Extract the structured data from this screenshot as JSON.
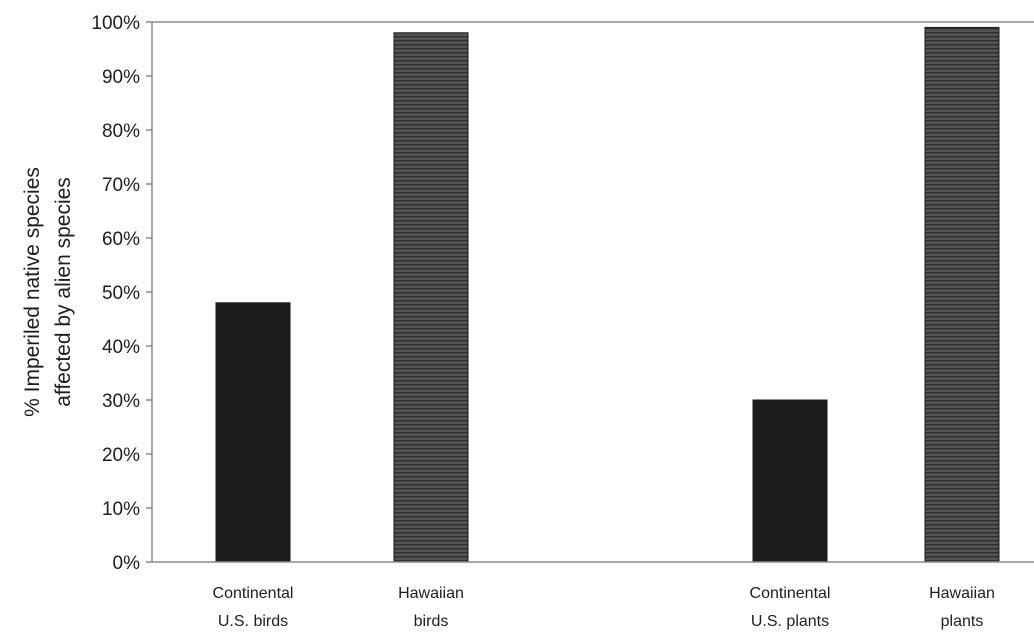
{
  "chart_data": {
    "type": "bar",
    "title": "",
    "xlabel": "",
    "ylabel": [
      "% Imperiled native species",
      "affected by alien species"
    ],
    "ylim": [
      0,
      100
    ],
    "yticks": [
      0,
      10,
      20,
      30,
      40,
      50,
      60,
      70,
      80,
      90,
      100
    ],
    "ytick_labels": [
      "0%",
      "10%",
      "20%",
      "30%",
      "40%",
      "50%",
      "60%",
      "70%",
      "80%",
      "90%",
      "100%"
    ],
    "grid": false,
    "legend": "none",
    "categories": [
      [
        "Continental",
        "U.S. birds"
      ],
      [
        "Hawaiian",
        "birds"
      ],
      [
        "Continental",
        "U.S. plants"
      ],
      [
        "Hawaiian",
        "plants"
      ]
    ],
    "values": [
      48,
      98,
      30,
      99
    ],
    "bar_styles": [
      "solid",
      "hatched",
      "solid",
      "hatched"
    ],
    "colors": {
      "solid": "#1c1c1c",
      "hatched": "#4a4a4a",
      "axis": "#8a8a8a",
      "text": "#1e1e1e"
    }
  }
}
